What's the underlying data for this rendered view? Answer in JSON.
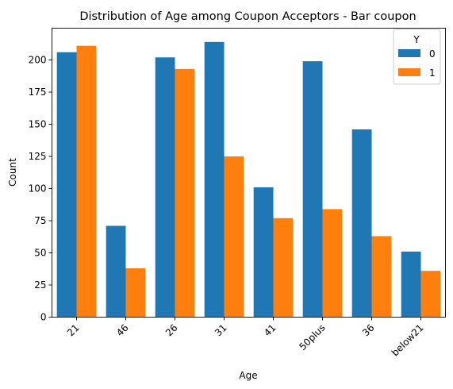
{
  "chart_data": {
    "type": "bar",
    "title": "Distribution of Age among Coupon Acceptors - Bar coupon",
    "xlabel": "Age",
    "ylabel": "Count",
    "categories": [
      "21",
      "46",
      "26",
      "31",
      "41",
      "50plus",
      "36",
      "below21"
    ],
    "series": [
      {
        "name": "0",
        "color": "#1f77b4",
        "values": [
          206,
          71,
          202,
          214,
          101,
          199,
          146,
          51
        ]
      },
      {
        "name": "1",
        "color": "#ff7f0e",
        "values": [
          211,
          38,
          193,
          125,
          77,
          84,
          63,
          36
        ]
      }
    ],
    "ylim": [
      0,
      224.7
    ],
    "yticks": [
      0,
      25,
      50,
      75,
      100,
      125,
      150,
      175,
      200
    ],
    "grid": false,
    "legend": {
      "title": "Y",
      "placement": "top-right"
    }
  }
}
